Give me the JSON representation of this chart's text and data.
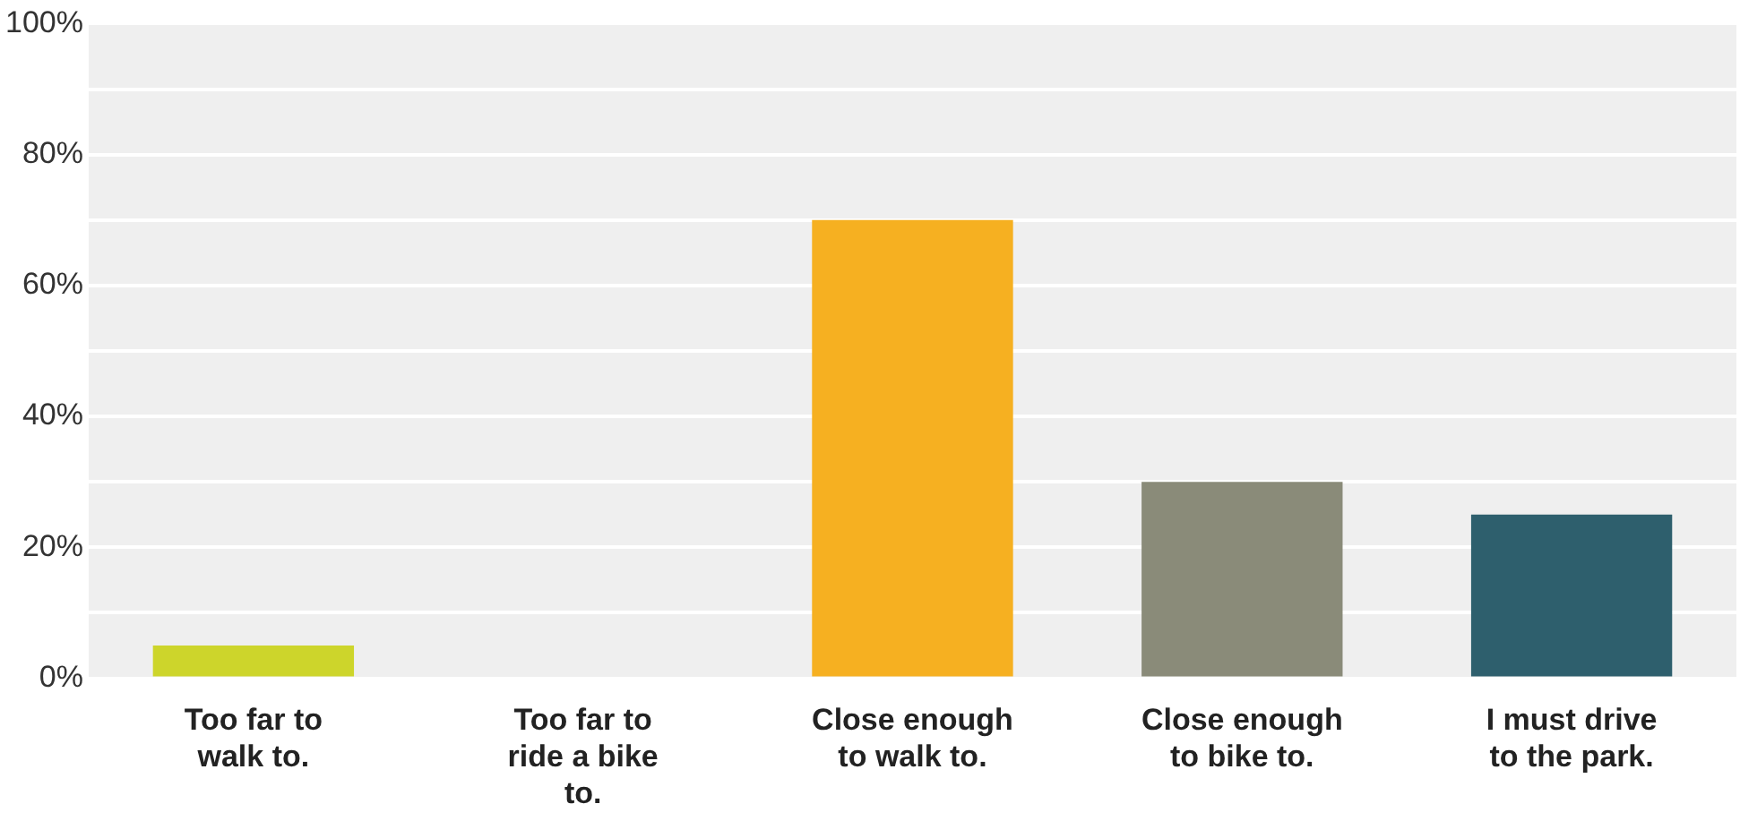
{
  "chart_data": {
    "type": "bar",
    "categories": [
      "Too far to walk to.",
      "Too far to ride a bike to.",
      "Close enough to walk to.",
      "Close enough to bike to.",
      "I must drive to the park."
    ],
    "values": [
      5,
      0,
      70,
      30,
      25
    ],
    "colors": [
      "#cdd52b",
      "#cdd52b",
      "#f6b021",
      "#8a8b79",
      "#2e5f6d"
    ],
    "ylim": [
      0,
      100
    ],
    "yticks": [
      {
        "value": 0,
        "label": "0%"
      },
      {
        "value": 10,
        "label": null
      },
      {
        "value": 20,
        "label": "20%"
      },
      {
        "value": 30,
        "label": null
      },
      {
        "value": 40,
        "label": "40%"
      },
      {
        "value": 50,
        "label": null
      },
      {
        "value": 60,
        "label": "60%"
      },
      {
        "value": 70,
        "label": null
      },
      {
        "value": 80,
        "label": "80%"
      },
      {
        "value": 90,
        "label": null
      },
      {
        "value": 100,
        "label": "100%"
      }
    ],
    "grid": "y",
    "legend": false
  }
}
